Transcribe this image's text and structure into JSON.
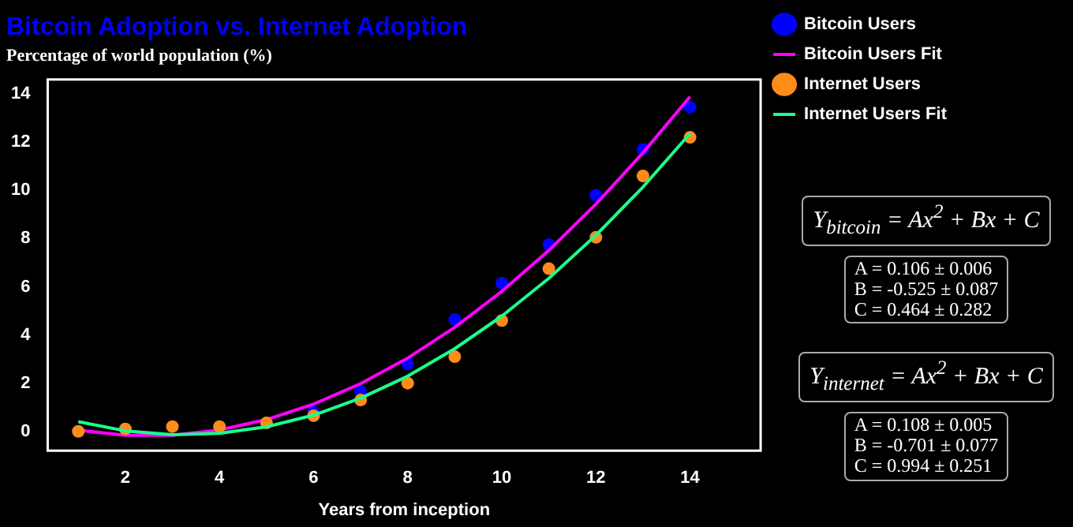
{
  "chart_data": {
    "type": "scatter",
    "title": "Bitcoin Adoption vs. Internet Adoption",
    "subtitle": "Percentage of world population (%)",
    "xlabel": "Years from inception",
    "x": [
      1,
      2,
      3,
      4,
      5,
      6,
      7,
      8,
      9,
      10,
      11,
      12,
      13,
      14
    ],
    "series": [
      {
        "name": "Bitcoin Users",
        "type": "scatter",
        "color": "#0000ff",
        "marker": "circle",
        "values": [
          null,
          null,
          null,
          null,
          null,
          0.8,
          1.65,
          2.8,
          4.65,
          6.15,
          7.75,
          9.8,
          11.7,
          13.45
        ]
      },
      {
        "name": "Bitcoin Users Fit",
        "type": "line",
        "color": "#ff00ff",
        "marker": "none",
        "values": [
          0.05,
          -0.16,
          -0.16,
          0.06,
          0.49,
          1.13,
          1.98,
          3.04,
          4.32,
          5.81,
          7.51,
          9.43,
          11.56,
          13.89
        ]
      },
      {
        "name": "Internet Users",
        "type": "scatter",
        "color": "#ff8c1a",
        "marker": "circle",
        "values": [
          0.0,
          0.1,
          0.2,
          0.2,
          0.35,
          0.65,
          1.3,
          2.0,
          3.1,
          4.6,
          6.75,
          8.05,
          10.6,
          12.2
        ]
      },
      {
        "name": "Internet Users Fit",
        "type": "line",
        "color": "#1aff8c",
        "marker": "none",
        "values": [
          0.4,
          0.02,
          -0.14,
          -0.08,
          0.19,
          0.67,
          1.38,
          2.29,
          3.43,
          4.78,
          6.35,
          8.14,
          10.14,
          12.36
        ]
      }
    ],
    "xlim": [
      0.35,
      15.5
    ],
    "xticks": [
      2,
      4,
      6,
      8,
      10,
      12,
      14
    ],
    "ylim": [
      -0.8,
      14.6
    ],
    "yticks": [
      0,
      2,
      4,
      6,
      8,
      10,
      12,
      14
    ],
    "grid": false,
    "legend": "right",
    "annotations": [
      "Y$_{bitcoin}$ = Ax$^{2}$ + Bx + C",
      "A = 0.106 ± 0.006\nB = -0.525 ± 0.087\nC = 0.464 ± 0.282",
      "Y$_{internet}$ = Ax$^{2}$ + Bx + C",
      "A = 0.108 ± 0.005\nB = -0.701 ± 0.077\nC = 0.994 ± 0.251"
    ]
  }
}
